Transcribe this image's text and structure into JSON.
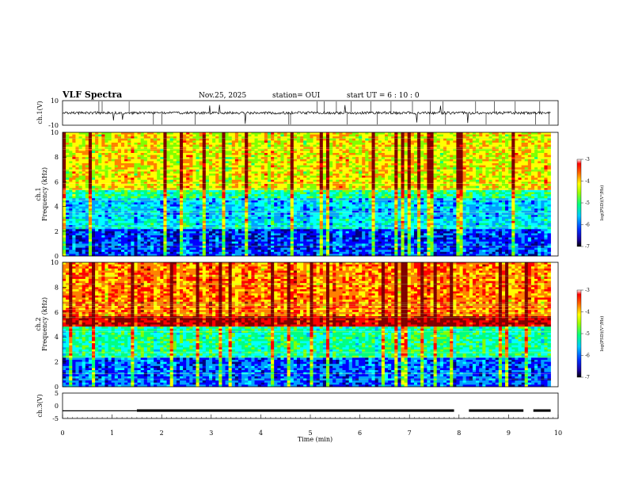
{
  "header": {
    "title": "VLF Spectra",
    "date": "Nov.25, 2025",
    "station": "station= OUI",
    "start": "start  UT =   6  : 10 : 0"
  },
  "chart_data": [
    {
      "type": "line",
      "panel": "ch1-waveform",
      "ylabel": "ch.1(V)",
      "ylim": [
        -10,
        10
      ],
      "yticks": [
        "10",
        "-10"
      ],
      "xlim": [
        0,
        10
      ],
      "description_values": {
        "baseline_v": 0
      }
    },
    {
      "type": "heatmap",
      "panel": "ch1-spectrogram",
      "ylabel_line1": "ch.1",
      "ylabel_line2": "Frequency (kHz)",
      "ylim": [
        0,
        10
      ],
      "yticks": [
        "0",
        "2",
        "4",
        "6",
        "8",
        "10"
      ],
      "xlim": [
        0,
        9.85
      ],
      "colorbar": {
        "range": [
          -7,
          -3
        ],
        "ticks": [
          "-3",
          "-4",
          "-5",
          "-6",
          "-7"
        ],
        "label": "log(PSD)(V²/Hz)"
      },
      "bands_khz": [
        {
          "from": 0,
          "to": 2.2,
          "level": -6.3
        },
        {
          "from": 2.2,
          "to": 3.0,
          "level": -5.6
        },
        {
          "from": 3.0,
          "to": 4.6,
          "level": -5.8
        },
        {
          "from": 4.6,
          "to": 5.4,
          "level": -5.2
        },
        {
          "from": 5.4,
          "to": 10,
          "level": -4.4
        }
      ]
    },
    {
      "type": "heatmap",
      "panel": "ch2-spectrogram",
      "ylabel_line1": "ch.2",
      "ylabel_line2": "Frequency (kHz)",
      "ylim": [
        0,
        10
      ],
      "yticks": [
        "0",
        "2",
        "4",
        "6",
        "8",
        "10"
      ],
      "xlim": [
        0,
        9.85
      ],
      "colorbar": {
        "range": [
          -7,
          -3
        ],
        "ticks": [
          "-3",
          "-4",
          "-5",
          "-6",
          "-7"
        ],
        "label": "log(PSD)(V²/Hz)"
      },
      "bands_khz": [
        {
          "from": 0,
          "to": 2.4,
          "level": -6.2
        },
        {
          "from": 2.4,
          "to": 4.8,
          "level": -5.3
        },
        {
          "from": 4.8,
          "to": 5.6,
          "level": -3.4
        },
        {
          "from": 5.6,
          "to": 10,
          "level": -4.0
        }
      ]
    },
    {
      "type": "line",
      "panel": "ch3-waveform",
      "ylabel": "ch.3(V)",
      "ylim": [
        -5,
        5
      ],
      "yticks": [
        "5",
        "0",
        "-5"
      ],
      "xlim": [
        0,
        10
      ],
      "xticks": [
        "0",
        "1",
        "2",
        "3",
        "4",
        "5",
        "6",
        "7",
        "8",
        "9",
        "10"
      ],
      "xlabel": "Time (min)",
      "segments": [
        {
          "x": [
            0.0,
            1.5
          ],
          "y": -2
        },
        {
          "x": [
            1.5,
            7.9
          ],
          "y": -1.9
        },
        {
          "x": [
            8.2,
            9.3
          ],
          "y": -1.9
        },
        {
          "x": [
            9.5,
            9.85
          ],
          "y": -1.9
        }
      ]
    }
  ],
  "colors": {
    "colormap": [
      "#000080",
      "#0000ff",
      "#00a0ff",
      "#00ffff",
      "#00ff80",
      "#80ff00",
      "#ffff00",
      "#ff8000",
      "#ff0000",
      "#800000"
    ]
  }
}
